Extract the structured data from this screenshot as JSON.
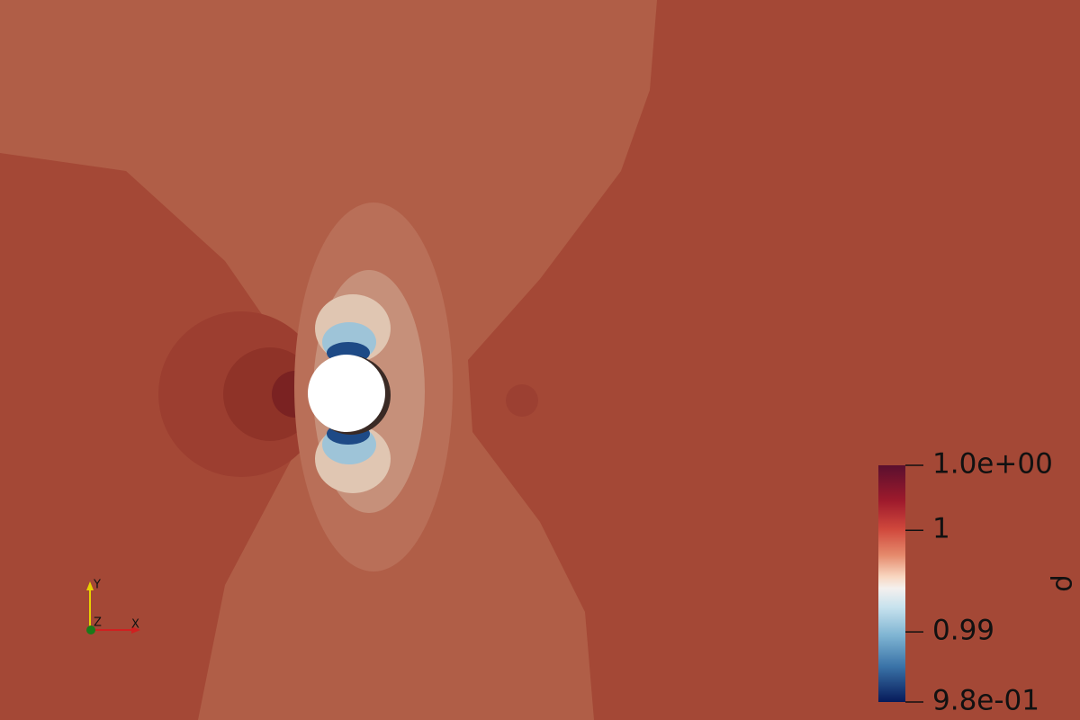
{
  "colorbar": {
    "title": "ρ",
    "range": [
      0.9831,
      1.0064
    ],
    "ticks": [
      {
        "value": 1.0064,
        "label": "1.0e+00"
      },
      {
        "value": 1,
        "label": "1"
      },
      {
        "value": 0.99,
        "label": "0.99"
      },
      {
        "value": 0.9831,
        "label": "9.8e-01"
      }
    ]
  },
  "axes": {
    "x": "X",
    "y": "Y",
    "z": "Z"
  }
}
